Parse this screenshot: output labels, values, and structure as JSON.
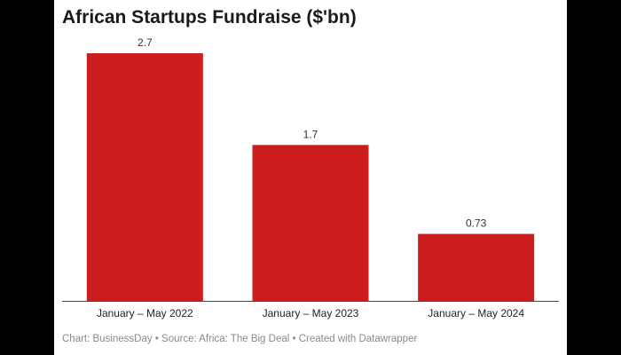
{
  "chart_data": {
    "type": "bar",
    "title": "African Startups Fundraise ($'bn)",
    "categories": [
      "January – May 2022",
      "January – May 2023",
      "January – May 2024"
    ],
    "values": [
      2.7,
      1.7,
      0.73
    ],
    "value_labels": [
      "2.7",
      "1.7",
      "0.73"
    ],
    "xlabel": "",
    "ylabel": "",
    "ylim": [
      0,
      2.7
    ],
    "grid": false,
    "bar_color": "#cc1e1e"
  },
  "footer": "Chart: BusinessDay • Source: Africa: The Big Deal • Created with Datawrapper"
}
